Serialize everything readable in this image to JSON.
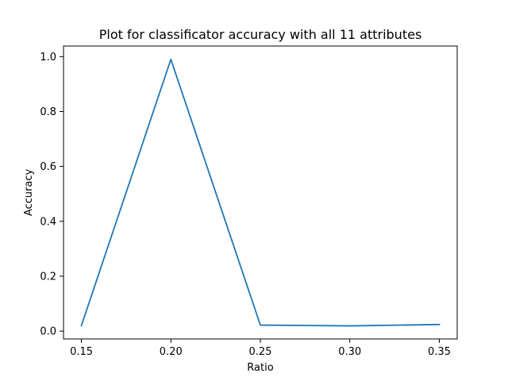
{
  "chart_data": {
    "type": "line",
    "title": "Plot for classificator accuracy with all 11 attributes",
    "xlabel": "Ratio",
    "ylabel": "Accuracy",
    "x": [
      0.15,
      0.2,
      0.25,
      0.3,
      0.35
    ],
    "series": [
      {
        "values": [
          0.02,
          0.99,
          0.022,
          0.019,
          0.024
        ],
        "color": "#1f77b4"
      }
    ],
    "xlim": [
      0.14,
      0.36
    ],
    "ylim": [
      -0.0285,
      1.0385
    ],
    "xticks": [
      0.15,
      0.2,
      0.25,
      0.3,
      0.35
    ],
    "xtick_labels": [
      "0.15",
      "0.20",
      "0.25",
      "0.30",
      "0.35"
    ],
    "yticks": [
      0.0,
      0.2,
      0.4,
      0.6,
      0.8,
      1.0
    ],
    "ytick_labels": [
      "0.0",
      "0.2",
      "0.4",
      "0.6",
      "0.8",
      "1.0"
    ],
    "grid": false,
    "legend": false
  }
}
